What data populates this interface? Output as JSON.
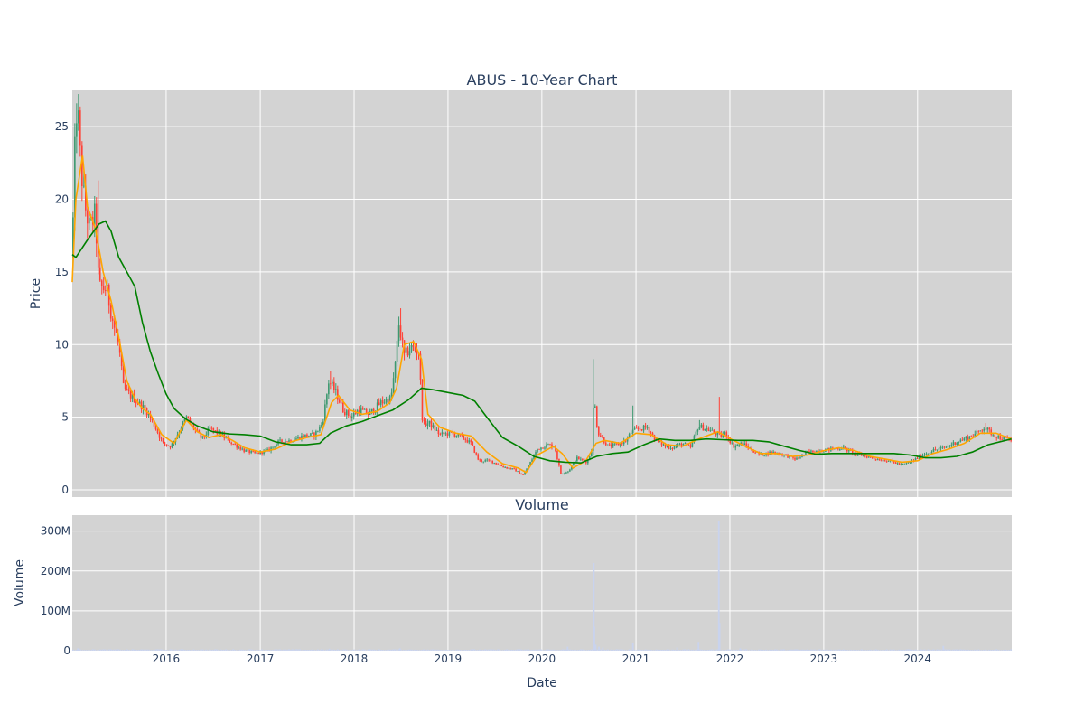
{
  "chart_data": [
    {
      "type": "candlestick",
      "title": "ABUS - 10-Year Chart",
      "ylabel": "Price",
      "xlabel": "",
      "xlim": [
        "2015-01-01",
        "2025-01-01"
      ],
      "ylim": [
        -0.5,
        27.5
      ],
      "y_ticks": [
        0,
        5,
        10,
        15,
        20,
        25
      ],
      "plot_background": "#d3d3d3",
      "grid": true,
      "colors": {
        "increasing": "#3d9970",
        "decreasing": "#ff4136",
        "ma_short": "#ffa500",
        "ma_long": "#008000"
      },
      "price_path": [
        [
          "2015-01-01",
          16
        ],
        [
          "2015-01-08",
          21
        ],
        [
          "2015-01-15",
          25.5
        ],
        [
          "2015-01-22",
          26.5
        ],
        [
          "2015-02-05",
          22
        ],
        [
          "2015-02-20",
          19.5
        ],
        [
          "2015-03-10",
          18
        ],
        [
          "2015-04-01",
          19
        ],
        [
          "2015-04-15",
          14
        ],
        [
          "2015-05-15",
          13.8
        ],
        [
          "2015-06-10",
          11.5
        ],
        [
          "2015-07-01",
          10
        ],
        [
          "2015-07-20",
          7
        ],
        [
          "2015-08-15",
          6.5
        ],
        [
          "2015-09-15",
          6
        ],
        [
          "2015-10-15",
          5.5
        ],
        [
          "2015-11-15",
          4.5
        ],
        [
          "2015-12-20",
          3.2
        ],
        [
          "2016-01-20",
          3.0
        ],
        [
          "2016-02-20",
          4.0
        ],
        [
          "2016-03-20",
          5.0
        ],
        [
          "2016-04-20",
          4.2
        ],
        [
          "2016-05-20",
          3.5
        ],
        [
          "2016-06-20",
          4.2
        ],
        [
          "2016-08-01",
          3.8
        ],
        [
          "2016-09-15",
          3.2
        ],
        [
          "2016-11-01",
          2.7
        ],
        [
          "2016-12-15",
          2.5
        ],
        [
          "2017-02-01",
          2.7
        ],
        [
          "2017-03-15",
          3.3
        ],
        [
          "2017-05-01",
          3.4
        ],
        [
          "2017-06-15",
          3.7
        ],
        [
          "2017-08-01",
          3.8
        ],
        [
          "2017-09-01",
          4.6
        ],
        [
          "2017-09-25",
          7.5
        ],
        [
          "2017-10-20",
          6.8
        ],
        [
          "2017-11-20",
          5.5
        ],
        [
          "2017-12-20",
          5.0
        ],
        [
          "2018-01-20",
          5.5
        ],
        [
          "2018-03-01",
          5.2
        ],
        [
          "2018-04-15",
          6.0
        ],
        [
          "2018-05-25",
          6.3
        ],
        [
          "2018-06-10",
          8.5
        ],
        [
          "2018-06-25",
          11.5
        ],
        [
          "2018-07-15",
          9.2
        ],
        [
          "2018-08-10",
          9.8
        ],
        [
          "2018-09-10",
          9.5
        ],
        [
          "2018-09-25",
          4.5
        ],
        [
          "2018-10-20",
          4.6
        ],
        [
          "2018-12-01",
          3.8
        ],
        [
          "2019-01-15",
          3.9
        ],
        [
          "2019-02-28",
          3.6
        ],
        [
          "2019-04-01",
          3.2
        ],
        [
          "2019-05-01",
          2.0
        ],
        [
          "2019-06-15",
          2.0
        ],
        [
          "2019-08-01",
          1.6
        ],
        [
          "2019-09-15",
          1.4
        ],
        [
          "2019-10-20",
          1.0
        ],
        [
          "2019-11-15",
          1.8
        ],
        [
          "2019-12-15",
          2.8
        ],
        [
          "2020-01-25",
          3.1
        ],
        [
          "2020-02-20",
          3.0
        ],
        [
          "2020-03-15",
          1.1
        ],
        [
          "2020-04-15",
          1.3
        ],
        [
          "2020-05-15",
          2.2
        ],
        [
          "2020-06-25",
          1.9
        ],
        [
          "2020-07-12",
          2.6
        ],
        [
          "2020-07-22",
          6.5
        ],
        [
          "2020-08-05",
          4.0
        ],
        [
          "2020-09-15",
          3.0
        ],
        [
          "2020-10-20",
          3.1
        ],
        [
          "2020-11-25",
          3.4
        ],
        [
          "2020-12-15",
          4.0
        ],
        [
          "2021-01-15",
          4.2
        ],
        [
          "2021-02-15",
          4.3
        ],
        [
          "2021-03-15",
          3.5
        ],
        [
          "2021-04-25",
          3.0
        ],
        [
          "2021-05-25",
          2.9
        ],
        [
          "2021-07-01",
          3.2
        ],
        [
          "2021-08-01",
          2.9
        ],
        [
          "2021-09-01",
          4.4
        ],
        [
          "2021-10-15",
          4.1
        ],
        [
          "2021-11-25",
          3.7
        ],
        [
          "2021-12-15",
          3.9
        ],
        [
          "2022-01-15",
          3.0
        ],
        [
          "2022-02-20",
          3.2
        ],
        [
          "2022-04-01",
          2.7
        ],
        [
          "2022-05-01",
          2.4
        ],
        [
          "2022-06-15",
          2.6
        ],
        [
          "2022-08-01",
          2.4
        ],
        [
          "2022-09-15",
          2.1
        ],
        [
          "2022-11-01",
          2.6
        ],
        [
          "2022-12-15",
          2.7
        ],
        [
          "2023-02-01",
          2.8
        ],
        [
          "2023-03-15",
          2.9
        ],
        [
          "2023-05-01",
          2.5
        ],
        [
          "2023-06-15",
          2.3
        ],
        [
          "2023-08-01",
          2.1
        ],
        [
          "2023-09-15",
          2.0
        ],
        [
          "2023-10-31",
          1.7
        ],
        [
          "2023-12-15",
          2.0
        ],
        [
          "2024-01-20",
          2.4
        ],
        [
          "2024-03-01",
          2.7
        ],
        [
          "2024-04-15",
          2.9
        ],
        [
          "2024-06-01",
          3.3
        ],
        [
          "2024-07-15",
          3.6
        ],
        [
          "2024-08-20",
          3.9
        ],
        [
          "2024-09-15",
          4.3
        ],
        [
          "2024-10-15",
          3.9
        ],
        [
          "2024-11-15",
          3.6
        ],
        [
          "2024-12-31",
          3.4
        ]
      ],
      "spikes": [
        [
          "2015-01-24",
          26.8
        ],
        [
          "2015-04-12",
          21.3
        ],
        [
          "2017-09-28",
          8.2
        ],
        [
          "2018-06-30",
          12.5
        ],
        [
          "2020-07-20",
          9.0
        ],
        [
          "2020-12-20",
          5.8
        ],
        [
          "2021-11-20",
          6.4
        ],
        [
          "2021-09-05",
          4.8
        ],
        [
          "2024-09-20",
          4.6
        ]
      ],
      "series": [
        {
          "type": "line",
          "x": [
            "2015-01-01",
            "2015-01-15",
            "2015-02-10",
            "2015-03-01",
            "2015-04-01",
            "2015-05-01",
            "2015-06-01",
            "2015-07-01",
            "2015-08-01",
            "2015-09-01",
            "2015-10-01",
            "2015-11-01",
            "2015-12-15",
            "2016-02-01",
            "2016-03-20",
            "2016-05-01",
            "2016-06-15",
            "2016-08-01",
            "2016-09-15",
            "2016-11-01",
            "2017-01-01",
            "2017-03-01",
            "2017-05-01",
            "2017-07-01",
            "2017-08-25",
            "2017-10-05",
            "2017-11-01",
            "2017-12-15",
            "2018-02-01",
            "2018-04-01",
            "2018-05-20",
            "2018-06-15",
            "2018-07-15",
            "2018-08-20",
            "2018-09-20",
            "2018-10-15",
            "2018-12-01",
            "2019-02-01",
            "2019-04-01",
            "2019-06-01",
            "2019-08-01",
            "2019-10-01",
            "2019-11-01",
            "2019-12-15",
            "2020-02-15",
            "2020-03-20",
            "2020-05-01",
            "2020-06-20",
            "2020-07-30",
            "2020-09-01",
            "2020-11-01",
            "2021-01-01",
            "2021-03-01",
            "2021-05-01",
            "2021-07-01",
            "2021-09-15",
            "2021-11-15",
            "2022-01-15",
            "2022-03-01",
            "2022-05-01",
            "2022-07-01",
            "2022-09-01",
            "2022-11-01",
            "2023-01-01",
            "2023-03-01",
            "2023-05-01",
            "2023-07-01",
            "2023-09-01",
            "2023-11-01",
            "2024-01-01",
            "2024-03-01",
            "2024-05-01",
            "2024-07-01",
            "2024-09-01",
            "2024-11-01",
            "2024-12-31"
          ],
          "y": [
            14.3,
            20.0,
            23.0,
            19.5,
            18.0,
            15.0,
            13.0,
            10.5,
            7.5,
            6.3,
            5.6,
            5.2,
            3.8,
            3.2,
            4.8,
            4.0,
            3.6,
            3.8,
            3.4,
            2.9,
            2.6,
            2.8,
            3.3,
            3.6,
            3.8,
            6.0,
            6.5,
            5.5,
            5.2,
            5.4,
            6.0,
            7.0,
            10.0,
            10.2,
            9.0,
            5.2,
            4.3,
            3.9,
            3.7,
            2.6,
            1.8,
            1.5,
            1.2,
            2.4,
            3.0,
            2.5,
            1.5,
            2.0,
            3.2,
            3.4,
            3.2,
            3.9,
            3.8,
            3.1,
            3.0,
            3.6,
            4.0,
            3.4,
            3.0,
            2.5,
            2.5,
            2.3,
            2.4,
            2.7,
            2.9,
            2.7,
            2.3,
            2.1,
            1.9,
            2.0,
            2.5,
            2.8,
            3.2,
            3.9,
            3.9,
            3.5
          ]
        },
        {
          "type": "line",
          "x": [
            "2015-01-01",
            "2015-01-15",
            "2015-03-01",
            "2015-04-15",
            "2015-05-10",
            "2015-06-01",
            "2015-07-01",
            "2015-08-01",
            "2015-09-01",
            "2015-10-01",
            "2015-11-01",
            "2015-12-01",
            "2016-01-01",
            "2016-02-01",
            "2016-03-15",
            "2016-05-01",
            "2016-07-01",
            "2016-09-01",
            "2016-11-01",
            "2017-01-01",
            "2017-03-01",
            "2017-05-01",
            "2017-07-01",
            "2017-08-20",
            "2017-10-01",
            "2017-12-01",
            "2018-02-01",
            "2018-04-01",
            "2018-06-01",
            "2018-08-01",
            "2018-09-20",
            "2018-11-01",
            "2019-01-01",
            "2019-03-01",
            "2019-04-15",
            "2019-06-01",
            "2019-08-01",
            "2019-10-01",
            "2019-12-01",
            "2020-02-01",
            "2020-04-01",
            "2020-06-01",
            "2020-08-01",
            "2020-10-01",
            "2020-12-01",
            "2021-02-01",
            "2021-04-01",
            "2021-06-01",
            "2021-08-01",
            "2021-10-01",
            "2021-12-01",
            "2022-02-01",
            "2022-04-01",
            "2022-06-01",
            "2022-08-01",
            "2022-10-01",
            "2022-12-01",
            "2023-02-01",
            "2023-04-01",
            "2023-06-01",
            "2023-08-01",
            "2023-10-01",
            "2023-12-01",
            "2024-02-01",
            "2024-04-01",
            "2024-06-01",
            "2024-08-01",
            "2024-10-01",
            "2024-12-31"
          ],
          "y": [
            16.2,
            16.0,
            17.2,
            18.3,
            18.5,
            17.8,
            16.0,
            15.0,
            14.0,
            11.5,
            9.5,
            8.0,
            6.6,
            5.6,
            4.9,
            4.4,
            4.0,
            3.85,
            3.8,
            3.7,
            3.3,
            3.1,
            3.1,
            3.2,
            3.9,
            4.4,
            4.7,
            5.1,
            5.5,
            6.2,
            7.0,
            6.9,
            6.7,
            6.5,
            6.1,
            5.0,
            3.6,
            3.0,
            2.3,
            2.0,
            1.9,
            1.85,
            2.3,
            2.5,
            2.6,
            3.1,
            3.5,
            3.4,
            3.4,
            3.5,
            3.45,
            3.4,
            3.4,
            3.3,
            3.0,
            2.7,
            2.45,
            2.5,
            2.5,
            2.5,
            2.5,
            2.5,
            2.4,
            2.2,
            2.2,
            2.3,
            2.6,
            3.1,
            3.5
          ]
        }
      ]
    },
    {
      "type": "bar",
      "title": "Volume",
      "xlabel": "Date",
      "ylabel": "Volume",
      "ylim": [
        0,
        340000000
      ],
      "y_ticks": [
        0,
        100000000,
        200000000,
        300000000
      ],
      "y_tick_labels": [
        "0",
        "100M",
        "200M",
        "300M"
      ],
      "x_ticks": [
        "2016-01-01",
        "2017-01-01",
        "2018-01-01",
        "2019-01-01",
        "2020-01-01",
        "2021-01-01",
        "2022-01-01",
        "2023-01-01",
        "2024-01-01"
      ],
      "x_tick_labels": [
        "2016",
        "2017",
        "2018",
        "2019",
        "2020",
        "2021",
        "2022",
        "2023",
        "2024"
      ],
      "bar_color": "#c9d3ee",
      "baseline": 2500000,
      "spikes": [
        [
          "2020-07-21",
          220000000
        ],
        [
          "2020-07-23",
          60000000
        ],
        [
          "2020-07-28",
          15000000
        ],
        [
          "2020-08-10",
          10000000
        ],
        [
          "2020-08-25",
          8000000
        ],
        [
          "2020-12-20",
          20000000
        ],
        [
          "2021-11-19",
          325000000
        ],
        [
          "2021-11-22",
          70000000
        ],
        [
          "2021-09-01",
          22000000
        ],
        [
          "2021-06-10",
          8000000
        ],
        [
          "2020-04-10",
          10000000
        ],
        [
          "2015-01-23",
          6000000
        ],
        [
          "2017-09-27",
          5000000
        ],
        [
          "2018-06-28",
          6000000
        ],
        [
          "2024-04-10",
          12000000
        ],
        [
          "2022-02-10",
          6000000
        ]
      ]
    }
  ]
}
